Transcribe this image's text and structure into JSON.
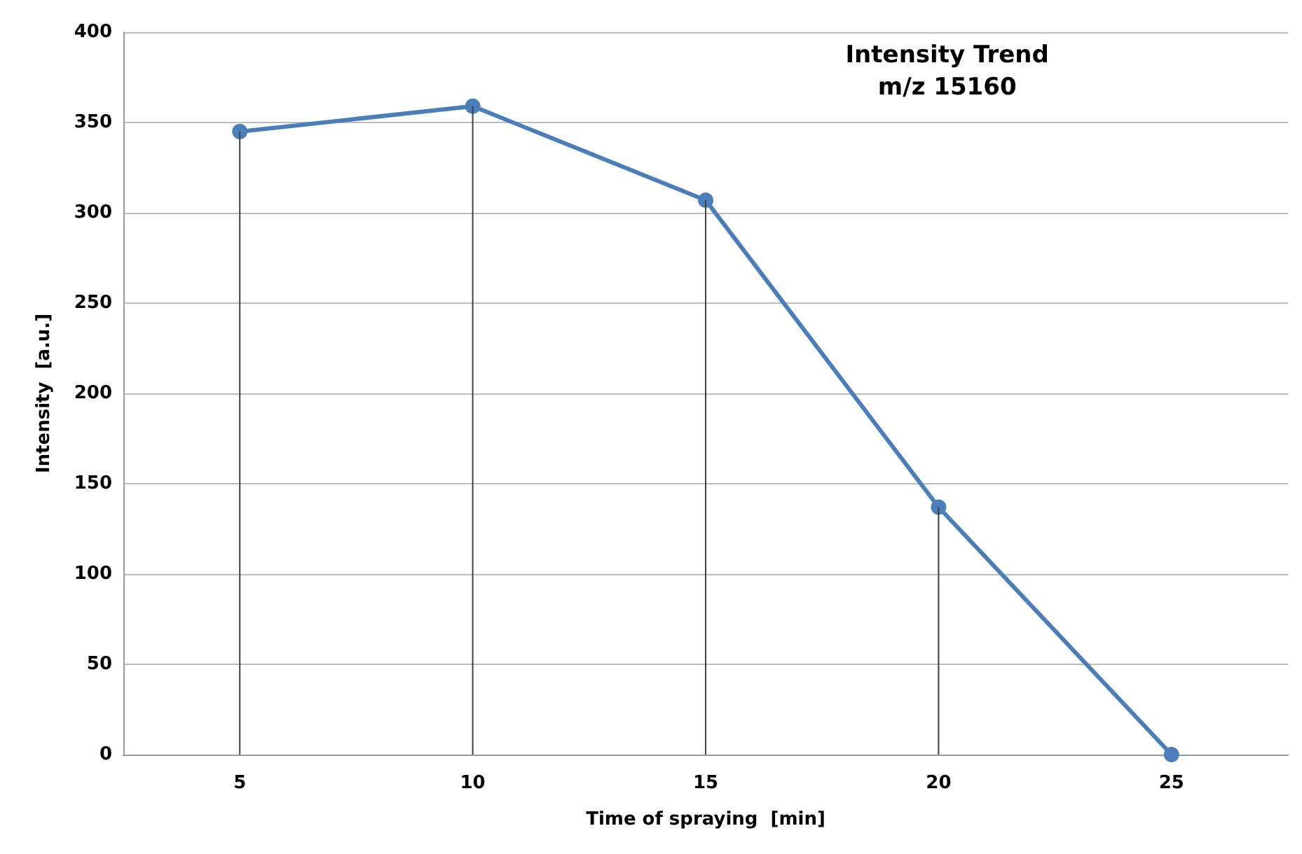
{
  "chart_data": {
    "type": "line",
    "title": "Intensity Trend",
    "subtitle": "m/z 15160",
    "xlabel": "Time of spraying  [min]",
    "ylabel": "Intensity  [a.u.]",
    "categories": [
      "5",
      "10",
      "15",
      "20",
      "25"
    ],
    "series": [
      {
        "type": "bar",
        "color": "#404040",
        "values": [
          345,
          359,
          307,
          137,
          0
        ]
      },
      {
        "color": "#4a7ebb",
        "values": [
          345,
          359,
          307,
          137,
          0
        ]
      }
    ],
    "ylim": [
      0,
      400
    ],
    "yticks": [
      0,
      50,
      100,
      150,
      200,
      250,
      300,
      350,
      400
    ],
    "grid": "y",
    "marker": "circle",
    "line_style": "solid"
  }
}
